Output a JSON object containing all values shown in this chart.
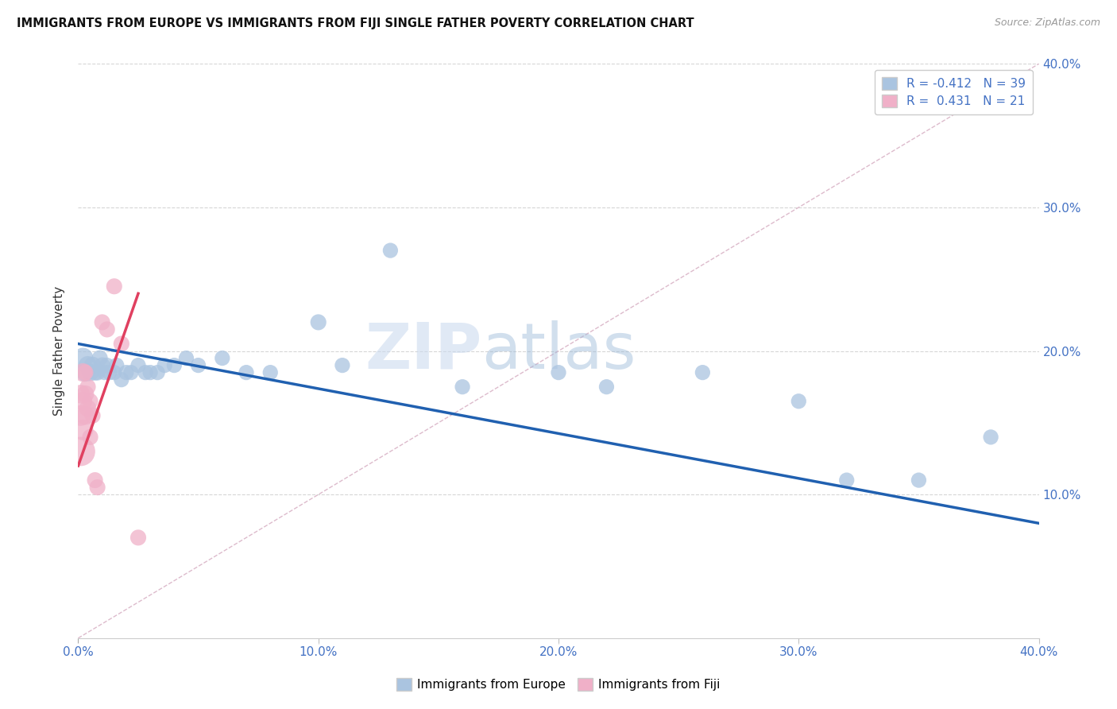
{
  "title": "IMMIGRANTS FROM EUROPE VS IMMIGRANTS FROM FIJI SINGLE FATHER POVERTY CORRELATION CHART",
  "source": "Source: ZipAtlas.com",
  "xlabel_label": "Immigrants from Europe",
  "ylabel_label": "Single Father Poverty",
  "legend_label1": "Immigrants from Europe",
  "legend_label2": "Immigrants from Fiji",
  "r1": -0.412,
  "n1": 39,
  "r2": 0.431,
  "n2": 21,
  "xlim": [
    0.0,
    0.4
  ],
  "ylim": [
    0.0,
    0.4
  ],
  "color_europe": "#aac4e0",
  "color_fiji": "#f0b0c8",
  "line_color_europe": "#2060b0",
  "line_color_fiji": "#e04060",
  "background_color": "#ffffff",
  "europe_x": [
    0.002,
    0.003,
    0.004,
    0.005,
    0.006,
    0.007,
    0.008,
    0.009,
    0.01,
    0.011,
    0.012,
    0.013,
    0.015,
    0.016,
    0.018,
    0.02,
    0.022,
    0.025,
    0.028,
    0.03,
    0.033,
    0.036,
    0.04,
    0.045,
    0.05,
    0.06,
    0.07,
    0.08,
    0.1,
    0.11,
    0.13,
    0.16,
    0.2,
    0.22,
    0.26,
    0.3,
    0.32,
    0.35,
    0.38
  ],
  "europe_y": [
    0.195,
    0.185,
    0.19,
    0.185,
    0.19,
    0.185,
    0.185,
    0.195,
    0.19,
    0.185,
    0.19,
    0.185,
    0.185,
    0.19,
    0.18,
    0.185,
    0.185,
    0.19,
    0.185,
    0.185,
    0.185,
    0.19,
    0.19,
    0.195,
    0.19,
    0.195,
    0.185,
    0.185,
    0.22,
    0.19,
    0.27,
    0.175,
    0.185,
    0.175,
    0.185,
    0.165,
    0.11,
    0.11,
    0.14
  ],
  "europe_size": [
    100,
    80,
    80,
    70,
    70,
    60,
    60,
    60,
    60,
    55,
    55,
    55,
    55,
    55,
    55,
    55,
    55,
    55,
    55,
    55,
    55,
    55,
    55,
    55,
    55,
    55,
    55,
    55,
    60,
    55,
    55,
    55,
    55,
    55,
    55,
    55,
    55,
    55,
    55
  ],
  "fiji_x": [
    0.001,
    0.001,
    0.001,
    0.002,
    0.002,
    0.002,
    0.003,
    0.003,
    0.003,
    0.004,
    0.004,
    0.005,
    0.005,
    0.006,
    0.007,
    0.008,
    0.01,
    0.012,
    0.015,
    0.018,
    0.025
  ],
  "fiji_y": [
    0.13,
    0.155,
    0.17,
    0.145,
    0.165,
    0.185,
    0.155,
    0.17,
    0.185,
    0.16,
    0.175,
    0.14,
    0.165,
    0.155,
    0.11,
    0.105,
    0.22,
    0.215,
    0.245,
    0.205,
    0.07
  ],
  "fiji_size": [
    200,
    100,
    80,
    100,
    80,
    80,
    80,
    70,
    60,
    70,
    60,
    60,
    60,
    60,
    60,
    60,
    60,
    60,
    60,
    60,
    60
  ]
}
